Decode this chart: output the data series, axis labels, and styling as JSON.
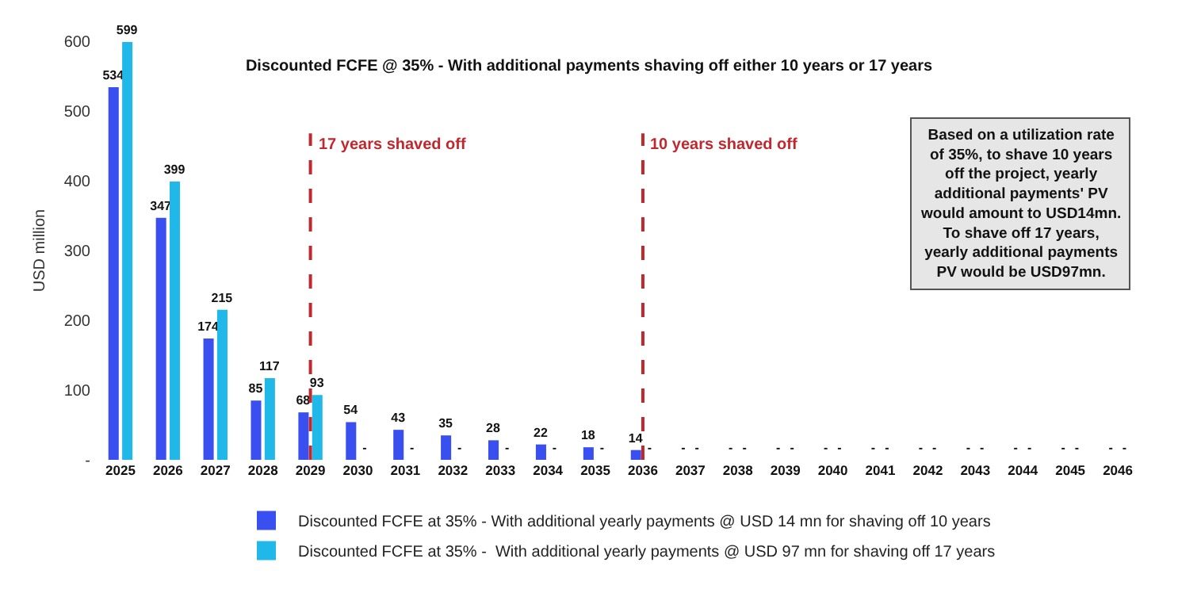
{
  "chart_data": {
    "type": "bar",
    "title": "Discounted FCFE @ 35% - With additional payments shaving off either 10 years or 17 years",
    "ylabel": "USD million",
    "categories": [
      "2025",
      "2026",
      "2027",
      "2028",
      "2029",
      "2030",
      "2031",
      "2032",
      "2033",
      "2034",
      "2035",
      "2036",
      "2037",
      "2038",
      "2039",
      "2040",
      "2041",
      "2042",
      "2043",
      "2044",
      "2045",
      "2046"
    ],
    "series": [
      {
        "name": "Discounted FCFE at 35% - With additional yearly payments @ USD 14 mn for shaving off 10 years",
        "color": "#3a4ff0",
        "values": [
          534,
          347,
          174,
          85,
          68,
          54,
          43,
          35,
          28,
          22,
          18,
          14,
          0,
          0,
          0,
          0,
          0,
          0,
          0,
          0,
          0,
          0
        ],
        "value_labels": [
          "534",
          "347",
          "174",
          "85",
          "68",
          "54",
          "43",
          "35",
          "28",
          "22",
          "18",
          "14",
          "-",
          "-",
          "-",
          "-",
          "-",
          "-",
          "-",
          "-",
          "-",
          "-"
        ]
      },
      {
        "name": "Discounted FCFE at 35% -  With additional yearly payments @ USD 97 mn for shaving off 17 years",
        "color": "#1fb8e8",
        "values": [
          599,
          399,
          215,
          117,
          93,
          0,
          0,
          0,
          0,
          0,
          0,
          0,
          0,
          0,
          0,
          0,
          0,
          0,
          0,
          0,
          0,
          0
        ],
        "value_labels": [
          "599",
          "399",
          "215",
          "117",
          "93",
          "-",
          "-",
          "-",
          "-",
          "-",
          "-",
          "-",
          "-",
          "-",
          "-",
          "-",
          "-",
          "-",
          "-",
          "-",
          "-",
          "-"
        ]
      }
    ],
    "ylim": [
      0,
      600
    ],
    "yticks": [
      {
        "value": 0,
        "label": "-"
      },
      100,
      200,
      300,
      400,
      500,
      600
    ],
    "grid": false,
    "legend": "bottom",
    "ref_lines": [
      {
        "axis": "x",
        "value": "2029",
        "label": "17 years shaved off",
        "color": "#c0282d",
        "line_style": "dashed"
      },
      {
        "axis": "x",
        "value": "2036",
        "label": "10 years shaved off",
        "color": "#c0282d",
        "line_style": "dashed"
      }
    ],
    "annotations": [
      "Based on a utilization rate\nof 35%, to shave 10 years\noff the project, yearly\nadditional payments' PV\nwould amount to USD14mn.\nTo shave off 17 years,\nyearly additional payments\nPV would be USD97mn."
    ]
  }
}
